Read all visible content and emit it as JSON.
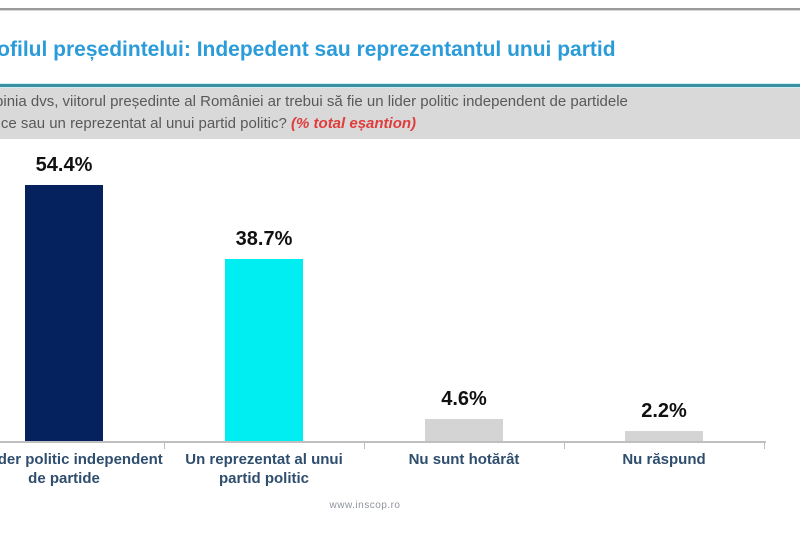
{
  "header": {
    "title": "Profilul președintelui: Indepedent sau reprezentantul unui partid"
  },
  "question": {
    "line1": "În opinia dvs, viitorul președinte al României ar trebui să fie un lider politic independent de partidele",
    "line2": "politice sau un reprezentat al unui partid politic? ",
    "note": "(% total eșantion)"
  },
  "chart_data": {
    "type": "bar",
    "categories": [
      "Un lider politic independent de partide",
      "Un reprezentat al unui partid politic",
      "Nu sunt hotărât",
      "Nu răspund"
    ],
    "values": [
      54.4,
      38.7,
      4.6,
      2.2
    ],
    "value_labels": [
      "54.4%",
      "38.7%",
      "4.6%",
      "2.2%"
    ],
    "bar_colors": [
      "#05215e",
      "#00eef2",
      "#d4d4d4",
      "#d4d4d4"
    ],
    "title": "Profilul președintelui: Indepedent sau reprezentantul unui partid",
    "xlabel": "",
    "ylabel": "% total eșantion",
    "ylim": [
      0,
      60
    ],
    "grid": false,
    "legend": false
  },
  "footer": {
    "source": "www.inscop.ro"
  },
  "colors": {
    "title_blue": "#2b9cd9",
    "divider_teal": "#3a8fa0",
    "question_bg": "#d9d9d9",
    "question_text": "#595959",
    "note_red": "#e03c3c",
    "axis_gray": "#bfbfbf",
    "category_label": "#2f4e6e",
    "value_label": "#111111",
    "bar_navy": "#05215e",
    "bar_cyan": "#00eef2",
    "bar_gray": "#d4d4d4"
  }
}
